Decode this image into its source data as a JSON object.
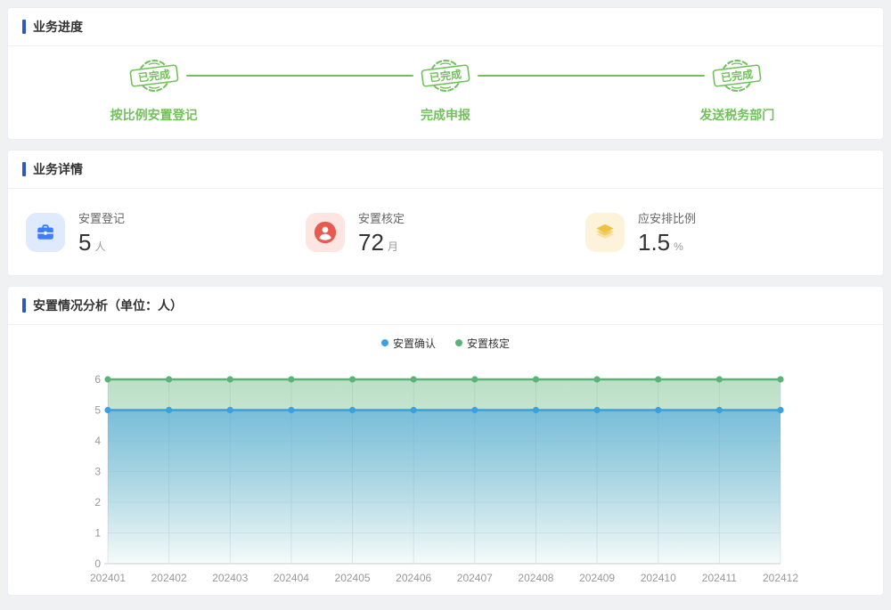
{
  "accent": {
    "header_bar_color": "#2b57c8",
    "progress_green": "#72c05c"
  },
  "progress": {
    "title": "业务进度",
    "badge_label": "已完成",
    "steps": [
      {
        "label": "按比例安置登记",
        "status": "已完成"
      },
      {
        "label": "完成申报",
        "status": "已完成"
      },
      {
        "label": "发送税务部门",
        "status": "已完成"
      }
    ]
  },
  "details": {
    "title": "业务详情",
    "cards": [
      {
        "label": "安置登记",
        "value": "5",
        "unit": "人",
        "icon": "briefcase-icon",
        "icon_color": "#3d7eff",
        "icon_bg": "#dfeafd"
      },
      {
        "label": "安置核定",
        "value": "72",
        "unit": "月",
        "icon": "person-icon",
        "icon_color": "#e9594f",
        "icon_bg": "#fde5e2"
      },
      {
        "label": "应安排比例",
        "value": "1.5",
        "unit": "%",
        "icon": "layers-icon",
        "icon_color": "#efc143",
        "icon_bg": "#fdf3da"
      }
    ]
  },
  "analysis": {
    "title": "安置情况分析（单位：人）"
  },
  "chart_data": {
    "type": "area",
    "title": "安置情况分析（单位：人）",
    "categories": [
      "202401",
      "202402",
      "202403",
      "202404",
      "202405",
      "202406",
      "202407",
      "202408",
      "202409",
      "202410",
      "202411",
      "202412"
    ],
    "series": [
      {
        "name": "安置确认",
        "values": [
          5,
          5,
          5,
          5,
          5,
          5,
          5,
          5,
          5,
          5,
          5,
          5
        ],
        "color": "#3b9fe4"
      },
      {
        "name": "安置核定",
        "values": [
          6,
          6,
          6,
          6,
          6,
          6,
          6,
          6,
          6,
          6,
          6,
          6
        ],
        "color": "#5cb377"
      }
    ],
    "xlabel": "",
    "ylabel": "",
    "ylim": [
      0,
      6
    ],
    "y_ticks": [
      0,
      1,
      2,
      3,
      4,
      5,
      6
    ],
    "grid": true,
    "legend_position": "top-center"
  }
}
